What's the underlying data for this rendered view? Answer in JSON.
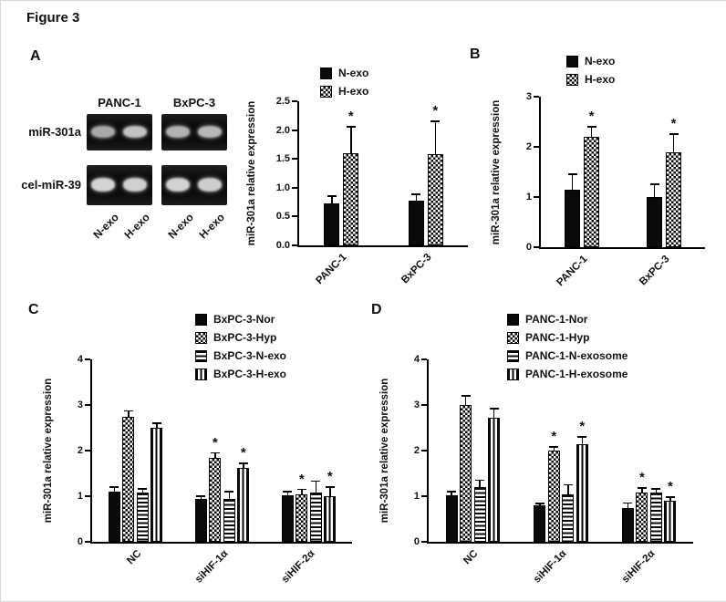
{
  "figure": {
    "title": "Figure 3",
    "panels": {
      "a": "A",
      "b": "B",
      "c": "C",
      "d": "D"
    }
  },
  "gel": {
    "col_labels": [
      "PANC-1",
      "BxPC-3"
    ],
    "row_labels": [
      "miR-301a",
      "cel-miR-39"
    ],
    "lane_labels": [
      "N-exo",
      "H-exo",
      "N-exo",
      "H-exo"
    ]
  },
  "chart_data": [
    {
      "id": "chartA",
      "type": "bar",
      "title": "",
      "xlabel": "",
      "ylabel": "miR-301a relative expression",
      "ylim": [
        0,
        2.5
      ],
      "yticks": [
        "0.0",
        "0.5",
        "1.0",
        "1.5",
        "2.0",
        "2.5"
      ],
      "grid": false,
      "legend_position": "top-center",
      "categories": [
        "PANC-1",
        "BxPC-3"
      ],
      "series": [
        {
          "name": "N-exo",
          "pattern": "solid",
          "values": [
            0.72,
            0.78
          ],
          "errors": [
            0.13,
            0.1
          ],
          "sig": [
            false,
            false
          ]
        },
        {
          "name": "H-exo",
          "pattern": "checker",
          "values": [
            1.6,
            1.58
          ],
          "errors": [
            0.45,
            0.57
          ],
          "sig": [
            true,
            true
          ]
        }
      ]
    },
    {
      "id": "chartB",
      "type": "bar",
      "title": "",
      "xlabel": "",
      "ylabel": "miR-301a relative expression",
      "ylim": [
        0,
        3
      ],
      "yticks": [
        "0",
        "1",
        "2",
        "3"
      ],
      "grid": false,
      "legend_position": "top-center",
      "categories": [
        "PANC-1",
        "BxPC-3"
      ],
      "series": [
        {
          "name": "N-exo",
          "pattern": "solid",
          "values": [
            1.15,
            1.0
          ],
          "errors": [
            0.3,
            0.25
          ],
          "sig": [
            false,
            false
          ]
        },
        {
          "name": "H-exo",
          "pattern": "checker",
          "values": [
            2.2,
            1.9
          ],
          "errors": [
            0.2,
            0.35
          ],
          "sig": [
            true,
            true
          ]
        }
      ]
    },
    {
      "id": "chartC",
      "type": "bar",
      "title": "",
      "xlabel": "",
      "ylabel": "miR-301a relative expression",
      "ylim": [
        0,
        4
      ],
      "yticks": [
        "0",
        "1",
        "2",
        "3",
        "4"
      ],
      "grid": false,
      "legend_position": "top-right",
      "categories": [
        "NC",
        "siHIF-1α",
        "siHIF-2α"
      ],
      "series": [
        {
          "name": "BxPC-3-Nor",
          "pattern": "solid",
          "values": [
            1.1,
            0.95,
            1.02
          ],
          "errors": [
            0.1,
            0.05,
            0.08
          ],
          "sig": [
            false,
            false,
            false
          ]
        },
        {
          "name": "BxPC-3-Hyp",
          "pattern": "checker",
          "values": [
            2.75,
            1.85,
            1.05
          ],
          "errors": [
            0.12,
            0.1,
            0.1
          ],
          "sig": [
            false,
            true,
            true
          ]
        },
        {
          "name": "BxPC-3-N-exo",
          "pattern": "hstripe",
          "values": [
            1.08,
            0.95,
            1.08
          ],
          "errors": [
            0.08,
            0.15,
            0.25
          ],
          "sig": [
            false,
            false,
            false
          ]
        },
        {
          "name": "BxPC-3-H-exo",
          "pattern": "vstripe",
          "values": [
            2.5,
            1.62,
            1.0
          ],
          "errors": [
            0.1,
            0.1,
            0.2
          ],
          "sig": [
            false,
            true,
            true
          ]
        }
      ]
    },
    {
      "id": "chartD",
      "type": "bar",
      "title": "",
      "xlabel": "",
      "ylabel": "miR-301a relative expression",
      "ylim": [
        0,
        4
      ],
      "yticks": [
        "0",
        "1",
        "2",
        "3",
        "4"
      ],
      "grid": false,
      "legend_position": "top-right",
      "categories": [
        "NC",
        "siHIF-1α",
        "siHIF-2α"
      ],
      "series": [
        {
          "name": "PANC-1-Nor",
          "pattern": "solid",
          "values": [
            1.02,
            0.8,
            0.75
          ],
          "errors": [
            0.08,
            0.04,
            0.1
          ],
          "sig": [
            false,
            false,
            false
          ]
        },
        {
          "name": "PANC-1-Hyp",
          "pattern": "checker",
          "values": [
            3.0,
            2.0,
            1.08
          ],
          "errors": [
            0.2,
            0.08,
            0.1
          ],
          "sig": [
            false,
            true,
            true
          ]
        },
        {
          "name": "PANC-1-N-exosome",
          "pattern": "hstripe",
          "values": [
            1.2,
            1.05,
            1.08
          ],
          "errors": [
            0.15,
            0.2,
            0.08
          ],
          "sig": [
            false,
            false,
            false
          ]
        },
        {
          "name": "PANC-1-H-exosome",
          "pattern": "vstripe",
          "values": [
            2.72,
            2.15,
            0.9
          ],
          "errors": [
            0.2,
            0.15,
            0.08
          ],
          "sig": [
            false,
            true,
            true
          ]
        }
      ]
    }
  ]
}
